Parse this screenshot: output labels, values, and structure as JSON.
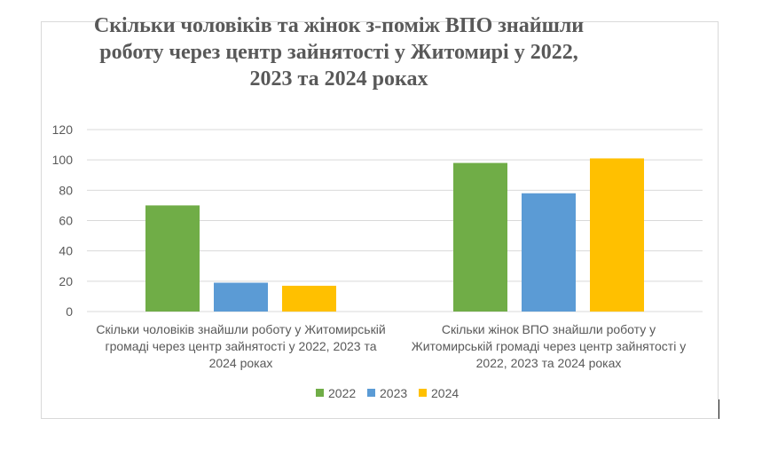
{
  "chart_data": {
    "type": "bar",
    "title_lines": [
      "Скільки чоловіків та жінок з-поміж ВПО знайшли",
      "роботу через центр зайнятості у Житомирі у 2022,",
      "2023 та 2024 роках"
    ],
    "categories": [
      [
        "Скільки чоловіків знайшли роботу у Житомирській",
        "громаді через центр зайнятості у 2022, 2023 та",
        "2024 роках"
      ],
      [
        "Скільки жінок ВПО знайшли роботу у",
        "Житомирській громаді через центр зайнятості у",
        "2022, 2023 та 2024 роках"
      ]
    ],
    "series": [
      {
        "name": "2022",
        "color": "#70ad47",
        "values": [
          70,
          98
        ]
      },
      {
        "name": "2023",
        "color": "#5b9bd5",
        "values": [
          19,
          78
        ]
      },
      {
        "name": "2024",
        "color": "#ffc000",
        "values": [
          17,
          101
        ]
      }
    ],
    "ylim": [
      0,
      120
    ],
    "yticks": [
      "0",
      "20",
      "40",
      "60",
      "80",
      "100",
      "120"
    ],
    "grid": true,
    "legend_position": "bottom"
  }
}
